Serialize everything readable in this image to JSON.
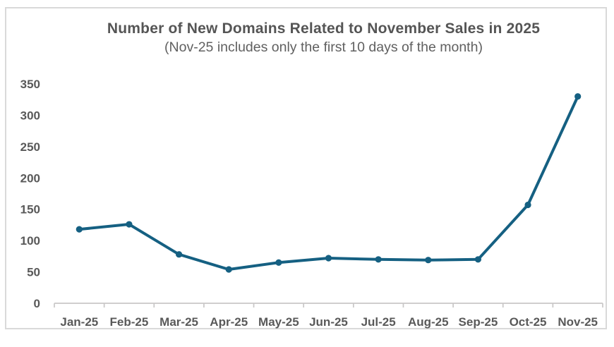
{
  "chart": {
    "title": "Number of New Domains Related to November Sales in 2025",
    "subtitle": "(Nov-25 includes only the first 10 days of the month)"
  },
  "chart_data": {
    "type": "line",
    "title": "Number of New Domains Related to November Sales in 2025",
    "subtitle": "(Nov-25 includes only the first 10 days of the month)",
    "categories": [
      "Jan-25",
      "Feb-25",
      "Mar-25",
      "Apr-25",
      "May-25",
      "Jun-25",
      "Jul-25",
      "Aug-25",
      "Sep-25",
      "Oct-25",
      "Nov-25"
    ],
    "values": [
      118,
      126,
      78,
      54,
      65,
      72,
      70,
      69,
      70,
      157,
      330
    ],
    "xlabel": "",
    "ylabel": "",
    "ylim": [
      0,
      350
    ],
    "yticks": [
      0,
      50,
      100,
      150,
      200,
      250,
      300,
      350
    ],
    "grid": false,
    "legend": "none",
    "marker": "circle",
    "line_color": "#156082",
    "marker_color": "#156082",
    "axis_color": "#C9C7C7",
    "label_color": "#595959",
    "frame_border_color": "#D9D9D9"
  }
}
